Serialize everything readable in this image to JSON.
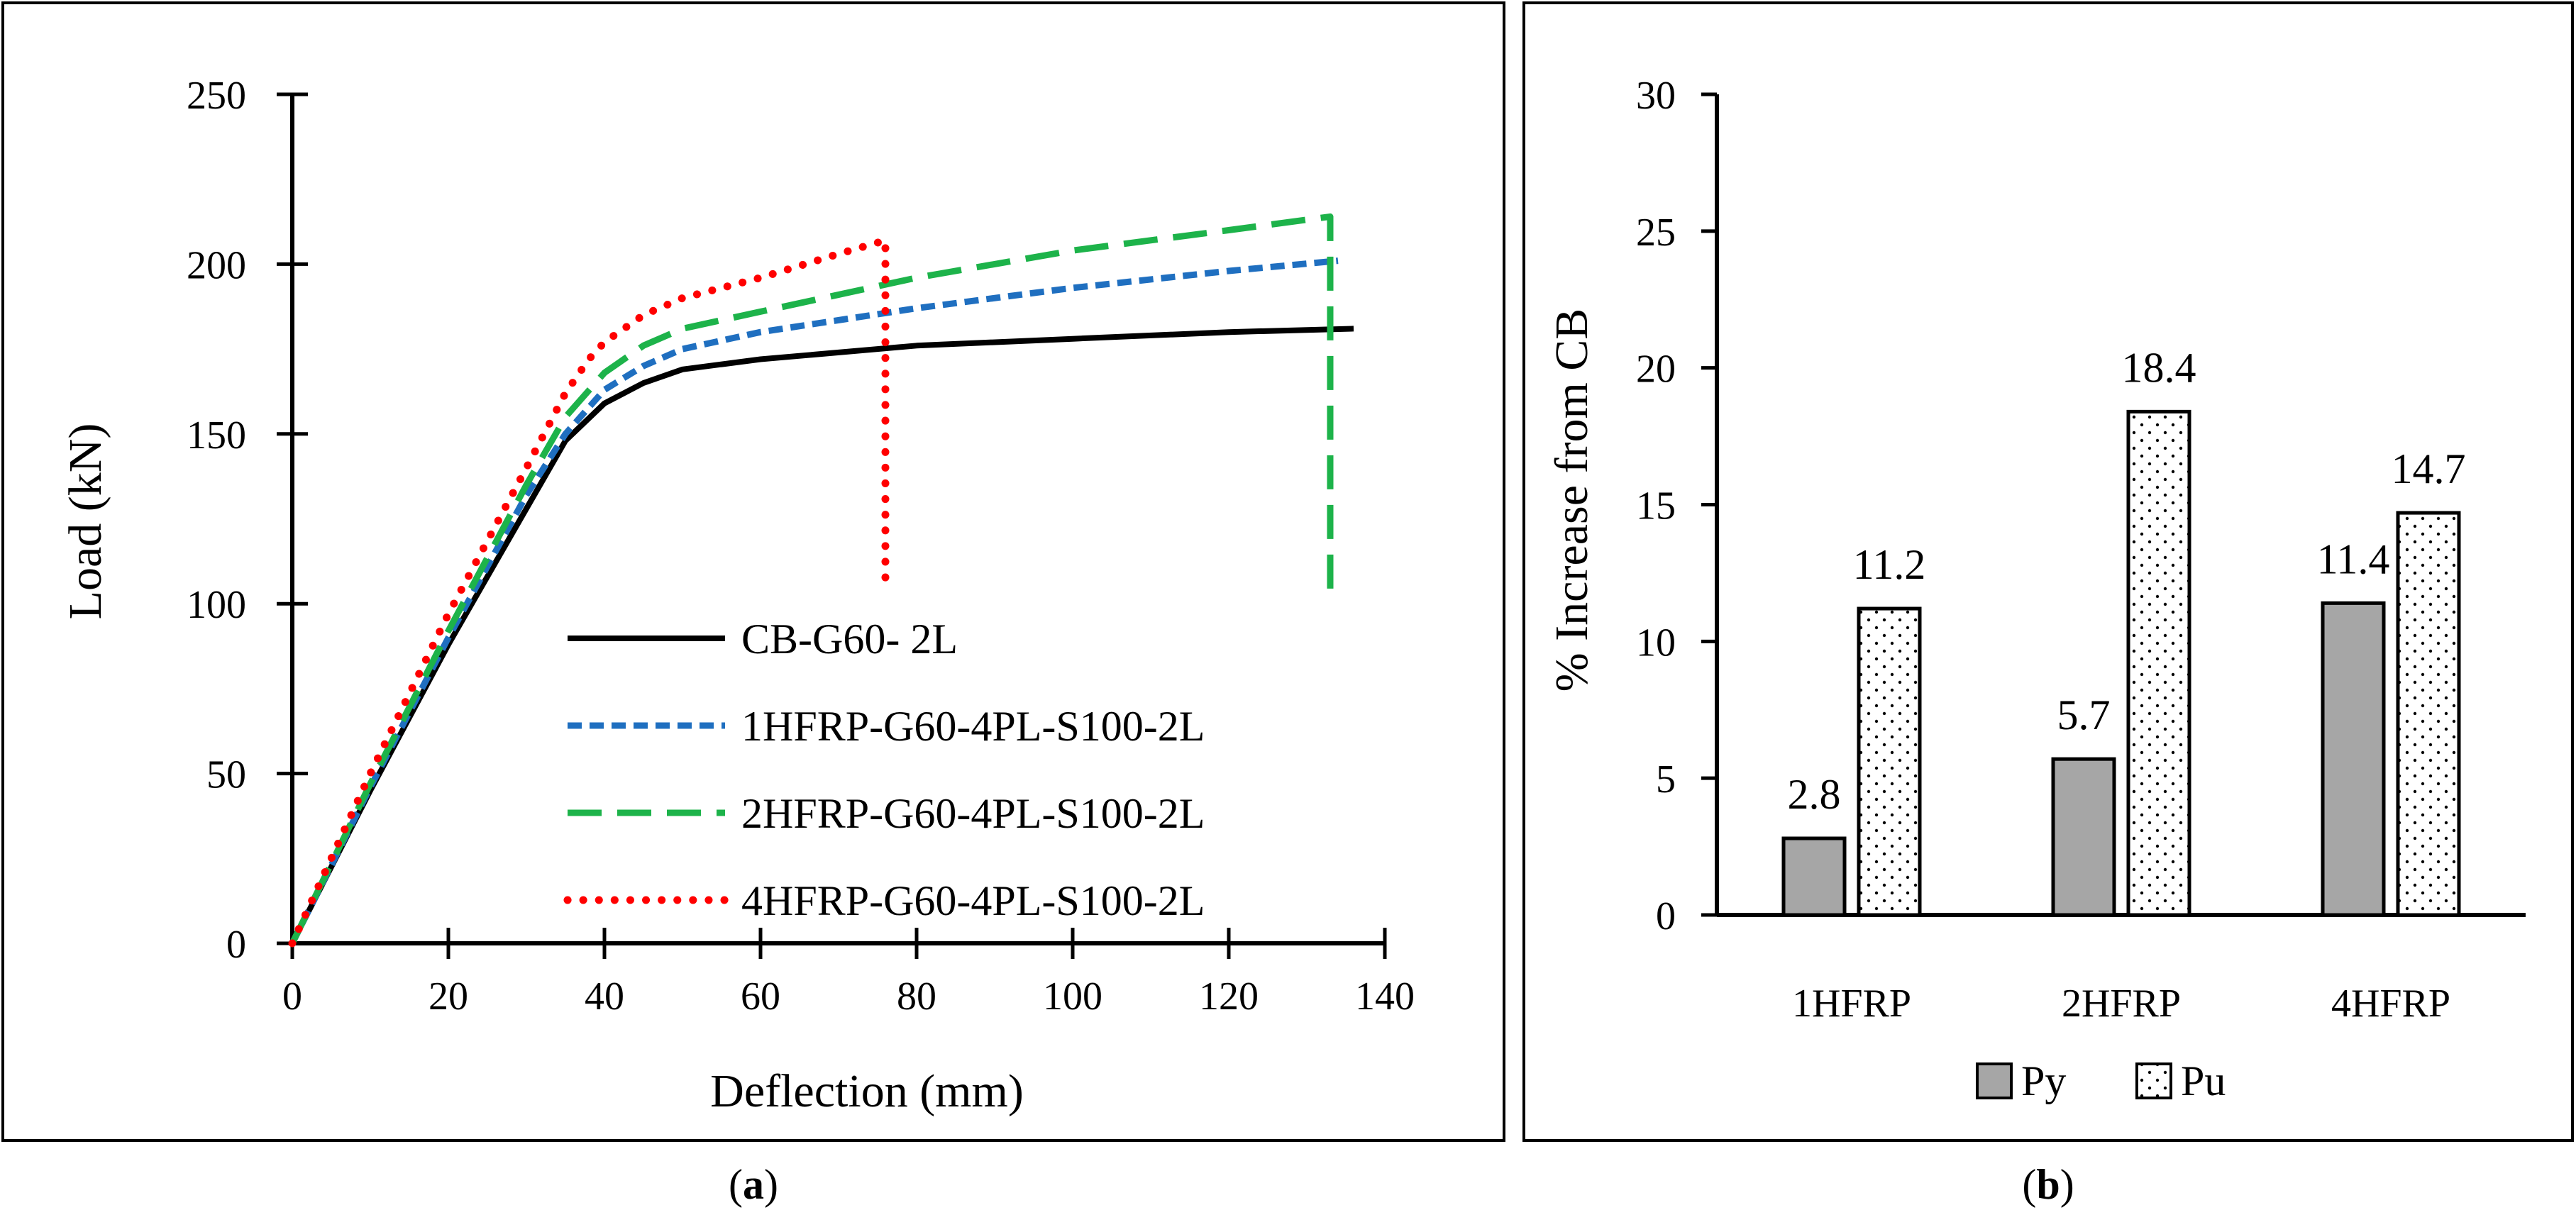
{
  "chart_data": [
    {
      "type": "line",
      "caption": "(a)",
      "caption_letter": "a",
      "xlabel": "Deflection (mm)",
      "ylabel": "Load (kN)",
      "xlim": [
        0,
        140
      ],
      "ylim": [
        0,
        250
      ],
      "x_ticks": [
        "0",
        "20",
        "40",
        "60",
        "80",
        "100",
        "120",
        "140"
      ],
      "y_ticks": [
        "0",
        "50",
        "100",
        "150",
        "200",
        "250"
      ],
      "legend_position": "bottom-right",
      "grid": false,
      "series": [
        {
          "name": "CB-G60- 2L",
          "color": "#000000",
          "dash": "solid",
          "x": [
            0,
            10,
            20,
            30,
            35,
            40,
            45,
            50,
            60,
            80,
            100,
            120,
            136
          ],
          "y": [
            0,
            45,
            88,
            128,
            148,
            159,
            165,
            169,
            172,
            176,
            178,
            180,
            181
          ]
        },
        {
          "name": "1HFRP-G60-4PL-S100-2L",
          "color": "#1f6fc0",
          "dash": "short-dash",
          "x": [
            0,
            10,
            20,
            30,
            35,
            40,
            45,
            50,
            60,
            80,
            100,
            120,
            134
          ],
          "y": [
            0,
            46,
            90,
            132,
            150,
            163,
            170,
            175,
            180,
            187,
            193,
            198,
            201
          ]
        },
        {
          "name": "2HFRP-G60-4PL-S100-2L",
          "color": "#1db34a",
          "dash": "long-dash",
          "x": [
            0,
            10,
            20,
            30,
            35,
            40,
            45,
            50,
            60,
            80,
            100,
            120,
            133,
            133
          ],
          "y": [
            0,
            47,
            92,
            135,
            155,
            168,
            176,
            181,
            186,
            196,
            204,
            210,
            214,
            100
          ]
        },
        {
          "name": "4HFRP-G60-4PL-S100-2L",
          "color": "#ff0000",
          "dash": "dotted",
          "x": [
            0,
            10,
            20,
            30,
            35,
            38,
            40,
            45,
            50,
            60,
            70,
            76,
            76
          ],
          "y": [
            0,
            50,
            97,
            140,
            162,
            172,
            177,
            185,
            190,
            196,
            203,
            207,
            105
          ]
        }
      ]
    },
    {
      "type": "bar",
      "caption": "(b)",
      "caption_letter": "b",
      "xlabel": "",
      "ylabel": "% Increase from CB",
      "ylim": [
        0,
        30
      ],
      "y_ticks": [
        "0",
        "5",
        "10",
        "15",
        "20",
        "25",
        "30"
      ],
      "categories": [
        "1HFRP",
        "2HFRP",
        "4HFRP"
      ],
      "legend_position": "bottom",
      "grid": false,
      "series": [
        {
          "name": "Py",
          "fill": "#a6a6a6",
          "pattern": "solid",
          "values": [
            2.8,
            5.7,
            11.4
          ],
          "labels": [
            "2.8",
            "5.7",
            "11.4"
          ]
        },
        {
          "name": "Pu",
          "fill": "#ffffff",
          "pattern": "dotted",
          "values": [
            11.2,
            18.4,
            14.7
          ],
          "labels": [
            "11.2",
            "18.4",
            "14.7"
          ]
        }
      ]
    }
  ]
}
